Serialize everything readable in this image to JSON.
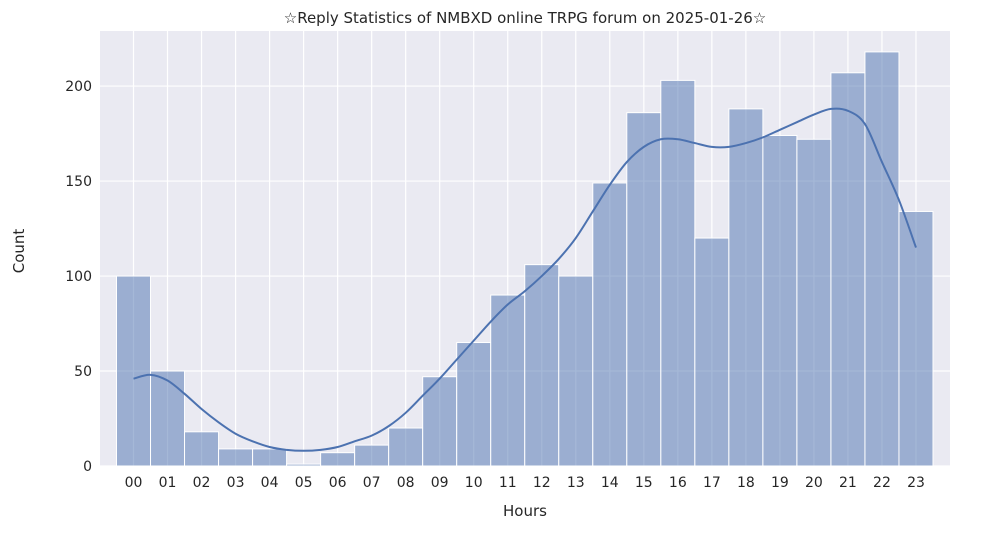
{
  "chart_data": {
    "type": "bar",
    "title": "☆Reply Statistics of NMBXD online TRPG forum on 2025-01-26☆",
    "xlabel": "Hours",
    "ylabel": "Count",
    "categories": [
      "00",
      "01",
      "02",
      "03",
      "04",
      "05",
      "06",
      "07",
      "08",
      "09",
      "10",
      "11",
      "12",
      "13",
      "14",
      "15",
      "16",
      "17",
      "18",
      "19",
      "20",
      "21",
      "22",
      "23"
    ],
    "values": [
      100,
      50,
      18,
      9,
      9,
      1,
      7,
      11,
      20,
      47,
      65,
      90,
      106,
      100,
      149,
      186,
      203,
      120,
      188,
      174,
      172,
      207,
      218,
      134
    ],
    "kde": [
      [
        0,
        46
      ],
      [
        0.5,
        48
      ],
      [
        1,
        45
      ],
      [
        1.5,
        38
      ],
      [
        2,
        30
      ],
      [
        2.5,
        23
      ],
      [
        3,
        17
      ],
      [
        3.5,
        13
      ],
      [
        4,
        10
      ],
      [
        4.5,
        8.5
      ],
      [
        5,
        8
      ],
      [
        5.5,
        8.5
      ],
      [
        6,
        10
      ],
      [
        6.5,
        13
      ],
      [
        7,
        16
      ],
      [
        7.5,
        21
      ],
      [
        8,
        28
      ],
      [
        8.5,
        37
      ],
      [
        9,
        46
      ],
      [
        9.5,
        56
      ],
      [
        10,
        66
      ],
      [
        10.5,
        76
      ],
      [
        11,
        85
      ],
      [
        11.5,
        92
      ],
      [
        12,
        100
      ],
      [
        12.5,
        109
      ],
      [
        13,
        120
      ],
      [
        13.5,
        134
      ],
      [
        14,
        148
      ],
      [
        14.5,
        160
      ],
      [
        15,
        168
      ],
      [
        15.5,
        172
      ],
      [
        16,
        172
      ],
      [
        16.5,
        170
      ],
      [
        17,
        168
      ],
      [
        17.5,
        168
      ],
      [
        18,
        170
      ],
      [
        18.5,
        173
      ],
      [
        19,
        177
      ],
      [
        19.5,
        181
      ],
      [
        20,
        185
      ],
      [
        20.5,
        188
      ],
      [
        21,
        187
      ],
      [
        21.5,
        180
      ],
      [
        22,
        160
      ],
      [
        22.5,
        140
      ],
      [
        23,
        115
      ]
    ],
    "yticks": [
      0,
      50,
      100,
      150,
      200
    ],
    "ylim": [
      0,
      229
    ],
    "xlim": [
      -0.985,
      24.0
    ],
    "grid": true,
    "colors": {
      "bar": "#4c72b0",
      "background": "#eaeaf2",
      "grid": "#ffffff",
      "line": "#4c72b0"
    }
  }
}
